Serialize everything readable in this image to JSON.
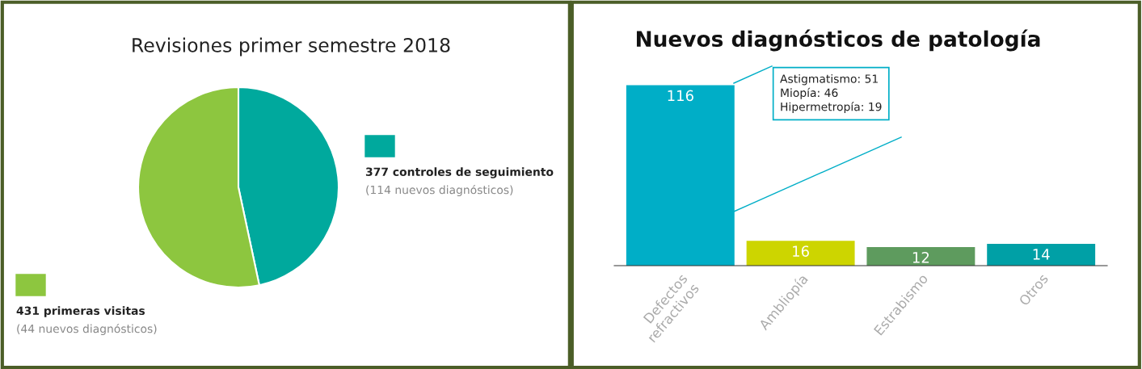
{
  "chart_data": [
    {
      "type": "pie",
      "title": "Revisiones primer semestre 2018",
      "categories": [
        "377 controles de seguimiento",
        "431 primeras visitas"
      ],
      "values": [
        377,
        431
      ],
      "colors": [
        "#00a99d",
        "#8dc63f"
      ],
      "annotations": [
        "(114 nuevos diagnósticos)",
        "(44 nuevos diagnósticos)"
      ],
      "legend": "right"
    },
    {
      "type": "bar",
      "title": "Nuevos diagnósticos de patología",
      "categories": [
        "Defectos\nrefractivos",
        "Ambliopía",
        "Estrabismo",
        "Otros"
      ],
      "values": [
        116,
        16,
        12,
        14
      ],
      "colors": [
        "#00aec7",
        "#cdd500",
        "#5e9b5e",
        "#00a0a6"
      ],
      "data_labels": true,
      "annotations": [
        "Astigmatismo: 51\nMiopía: 46\nHipermetropía: 19"
      ]
    }
  ]
}
